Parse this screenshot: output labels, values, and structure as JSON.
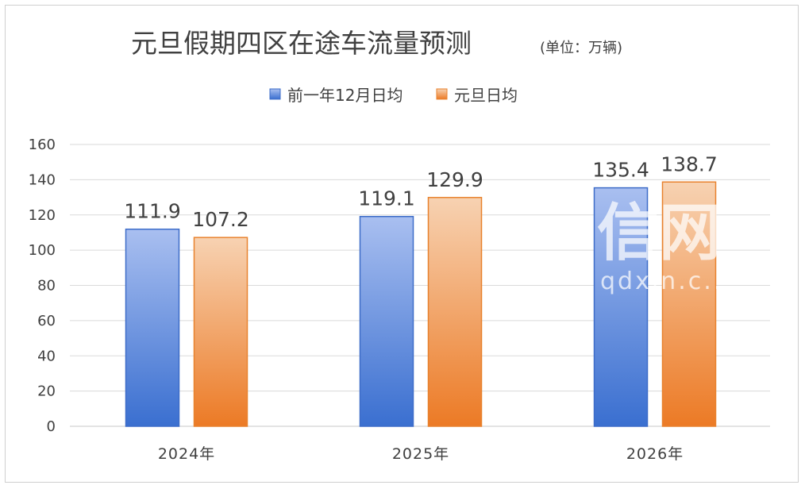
{
  "watermark": {
    "logo": "信网",
    "site": "qdxin.c..."
  },
  "colors": {
    "series1_top": "#a9bff0",
    "series1_bottom": "#3a6fd0",
    "series1_edge": "#3d6cc8",
    "series2_top": "#f7d2b2",
    "series2_bottom": "#ec7a25",
    "series2_edge": "#e8822e"
  },
  "chart_data": {
    "type": "bar",
    "title": "元旦假期四区在途车流量预测",
    "subtitle": "(单位：万辆)",
    "categories": [
      "2024年",
      "2025年",
      "2026年"
    ],
    "series": [
      {
        "name": "前一年12月日均",
        "values": [
          111.9,
          119.1,
          135.4
        ],
        "labels": [
          "111.9",
          "119.1",
          "135.4"
        ]
      },
      {
        "name": "元旦日均",
        "values": [
          107.2,
          129.9,
          138.7
        ],
        "labels": [
          "107.2",
          "129.9",
          "138.7"
        ]
      }
    ],
    "yticks": [
      "0",
      "20",
      "40",
      "60",
      "80",
      "100",
      "120",
      "140",
      "160"
    ],
    "ylim": [
      0,
      160
    ],
    "xlabel": "",
    "ylabel": "",
    "grid": true,
    "legend": "top-center"
  }
}
